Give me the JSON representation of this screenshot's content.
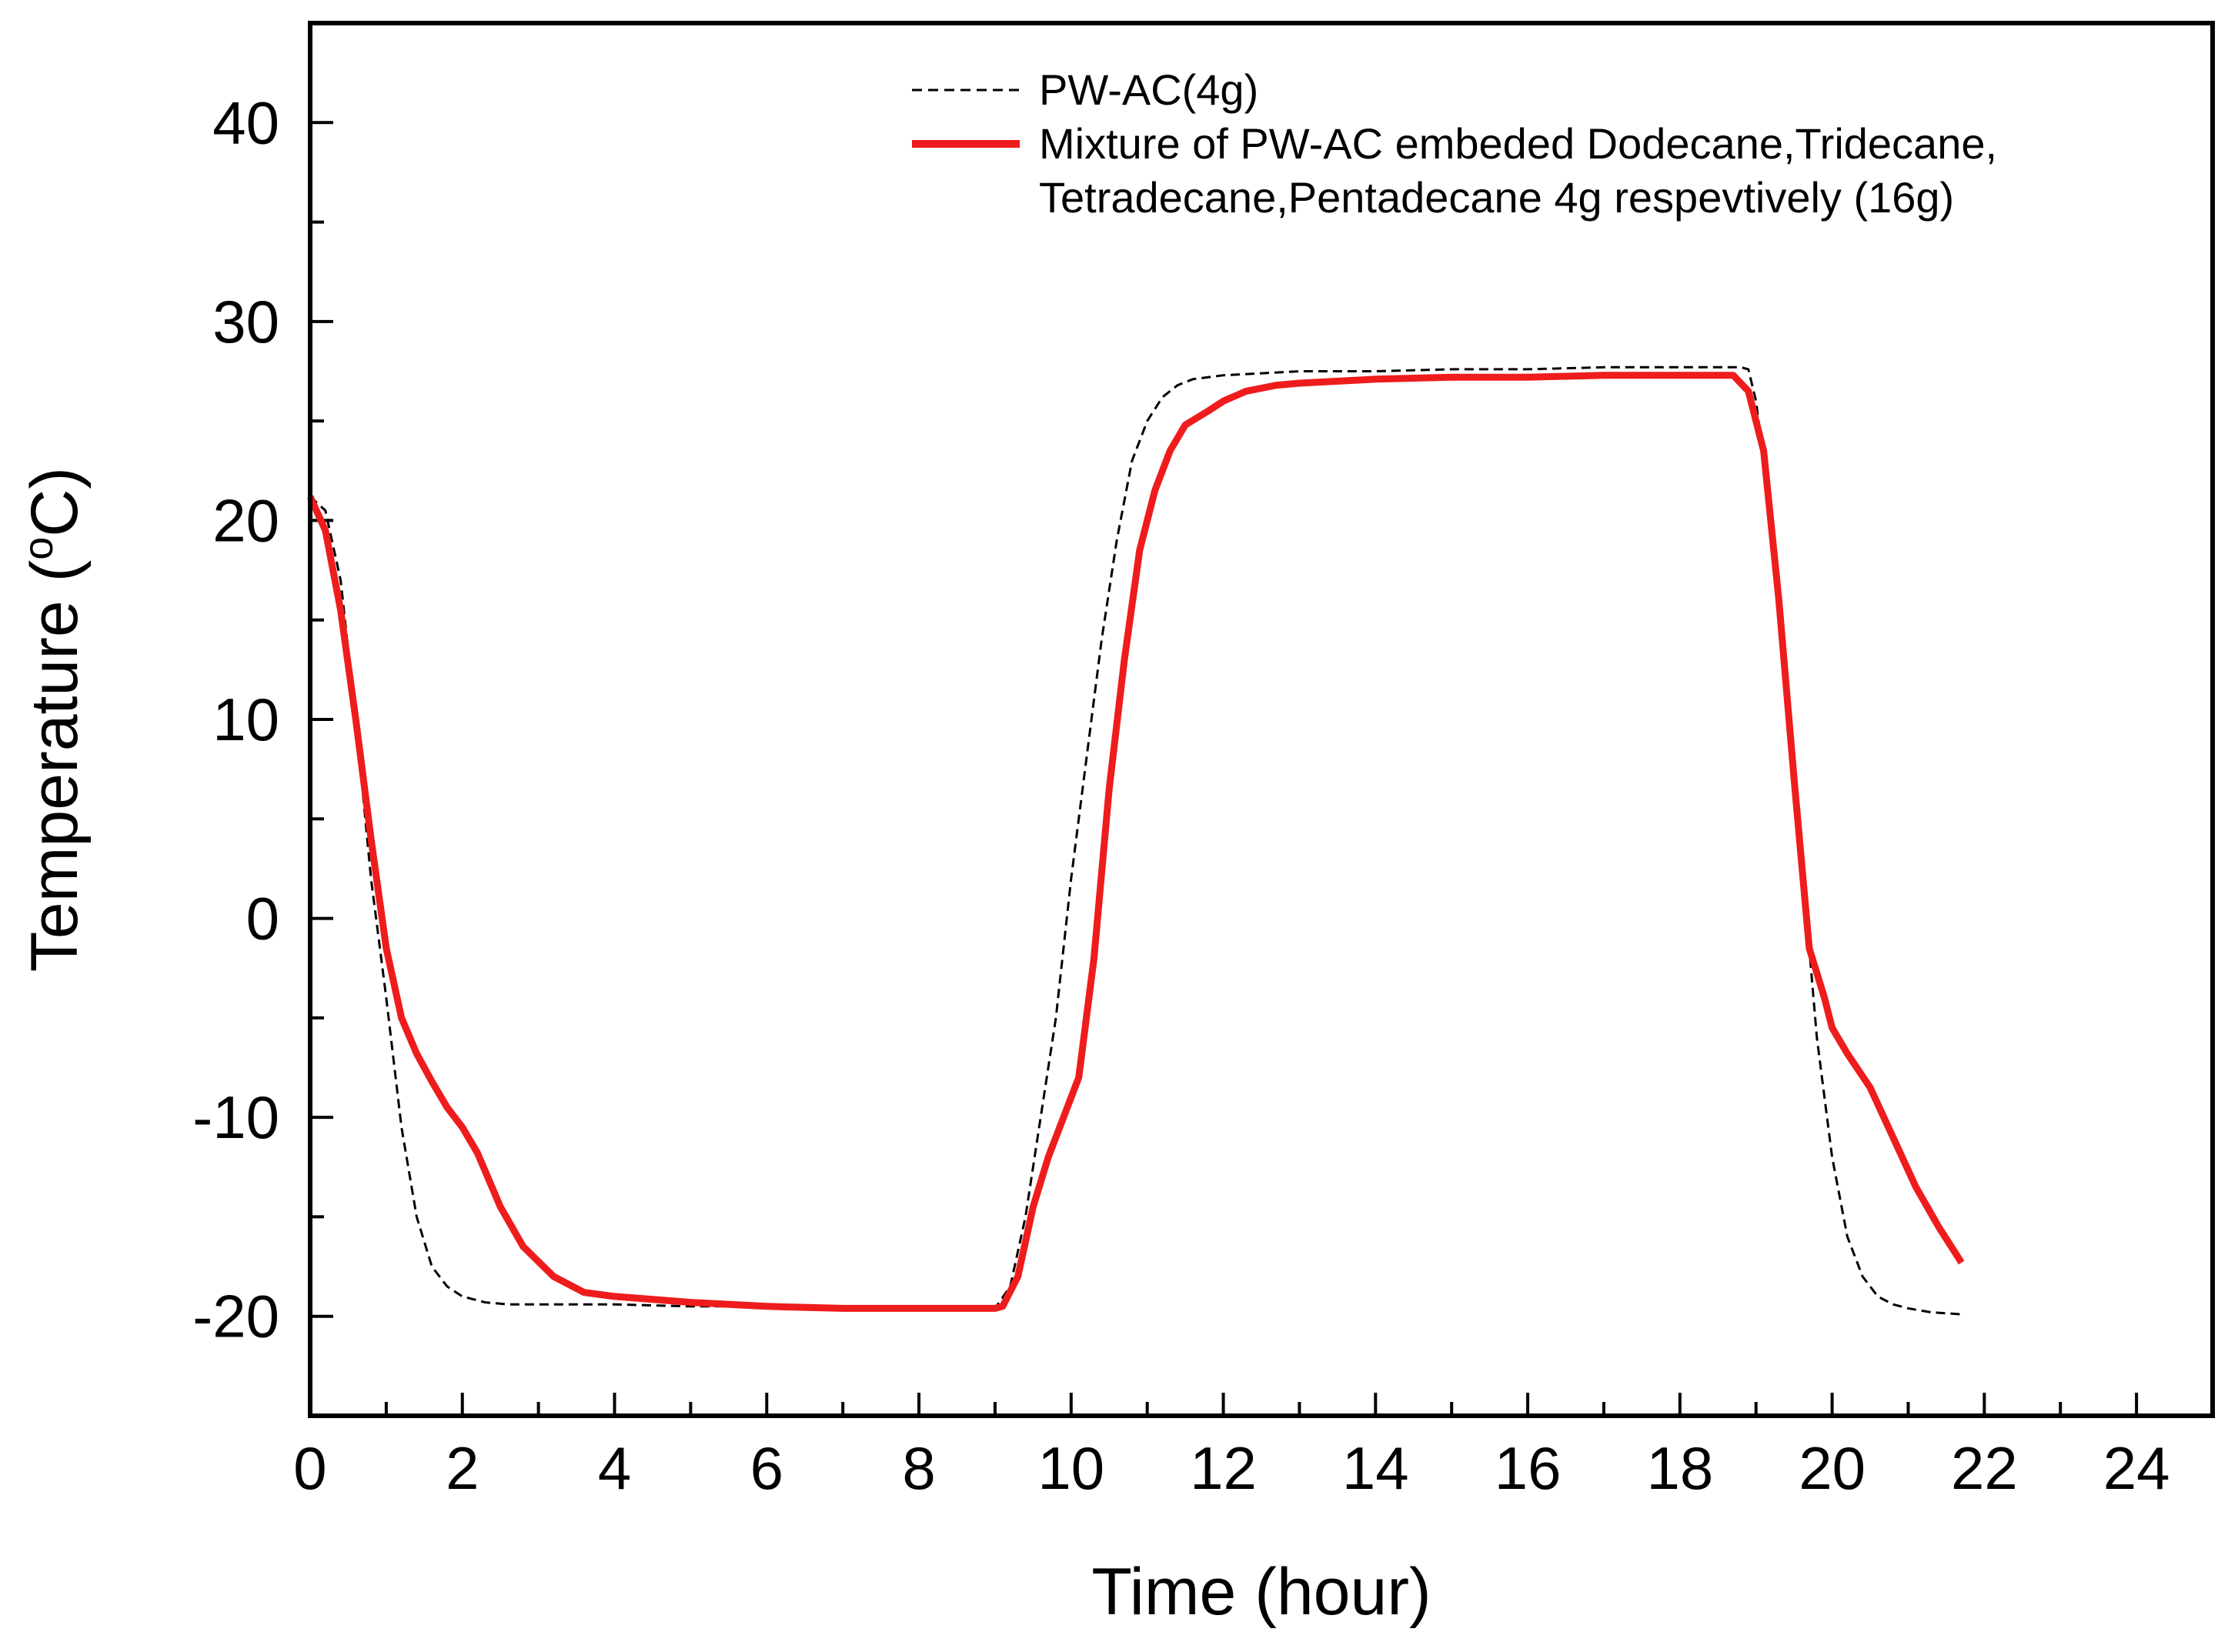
{
  "chart_data": {
    "type": "line",
    "title": "",
    "xlabel": "Time (hour)",
    "ylabel_main": "Temperature (",
    "ylabel_sup": "o",
    "ylabel_unit": "C)",
    "xlim": [
      0,
      25
    ],
    "ylim": [
      -25,
      45
    ],
    "xticks": [
      0,
      2,
      4,
      6,
      8,
      10,
      12,
      14,
      16,
      18,
      20,
      22,
      24
    ],
    "xtick_labels": [
      "0",
      "2",
      "4",
      "6",
      "8",
      "10",
      "12",
      "14",
      "16",
      "18",
      "20",
      "22",
      "24"
    ],
    "yticks": [
      -20,
      -10,
      0,
      10,
      20,
      30,
      40
    ],
    "ytick_labels": [
      "-20",
      "-10",
      "0",
      "10",
      "20",
      "30",
      "40"
    ],
    "grid": false,
    "legend_position": "top-right",
    "series": [
      {
        "name": "PW-AC(4g)",
        "style": "dashed",
        "color": "#000000",
        "x": [
          0,
          0.2,
          0.4,
          0.6,
          0.8,
          1.0,
          1.2,
          1.4,
          1.6,
          1.8,
          2.0,
          2.3,
          2.6,
          3.0,
          3.5,
          4.0,
          5.0,
          6.0,
          7.0,
          8.0,
          8.6,
          9.0,
          9.2,
          9.4,
          9.6,
          9.8,
          10.0,
          10.2,
          10.4,
          10.6,
          10.8,
          11.0,
          11.2,
          11.4,
          11.6,
          11.8,
          12.0,
          12.5,
          13.0,
          14.0,
          15.0,
          16.0,
          17.0,
          18.0,
          18.8,
          18.9,
          19.0,
          19.2,
          19.4,
          19.6,
          19.8,
          20.0,
          20.2,
          20.4,
          20.6,
          20.8,
          21.0,
          21.3,
          21.7
        ],
        "y": [
          21.2,
          20.5,
          17.0,
          10.0,
          2.0,
          -4.0,
          -10.5,
          -15.0,
          -17.5,
          -18.5,
          -19.0,
          -19.3,
          -19.4,
          -19.4,
          -19.4,
          -19.4,
          -19.5,
          -19.5,
          -19.6,
          -19.6,
          -19.7,
          -19.6,
          -18.5,
          -15.0,
          -10.0,
          -5.0,
          2.0,
          8.0,
          14.0,
          19.0,
          23.0,
          25.0,
          26.2,
          26.8,
          27.1,
          27.2,
          27.3,
          27.4,
          27.5,
          27.5,
          27.6,
          27.6,
          27.7,
          27.7,
          27.7,
          27.6,
          26.0,
          20.0,
          12.0,
          3.0,
          -6.0,
          -12.0,
          -16.0,
          -18.0,
          -19.0,
          -19.4,
          -19.6,
          -19.8,
          -19.9
        ]
      },
      {
        "name": "Mixture of PW-AC embeded Dodecane,Tridecane, Tetradecane,Pentadecane 4g respevtively  (16g)",
        "style": "solid",
        "color": "#ee1c1c",
        "x": [
          0,
          0.2,
          0.4,
          0.6,
          0.8,
          1.0,
          1.2,
          1.4,
          1.6,
          1.8,
          2.0,
          2.2,
          2.5,
          2.8,
          3.2,
          3.6,
          4.0,
          5.0,
          6.0,
          7.0,
          8.0,
          9.0,
          9.1,
          9.3,
          9.5,
          9.7,
          9.9,
          10.1,
          10.3,
          10.5,
          10.7,
          10.9,
          11.1,
          11.3,
          11.5,
          11.8,
          12.0,
          12.3,
          12.7,
          13.0,
          14.0,
          15.0,
          16.0,
          17.0,
          18.0,
          18.7,
          18.9,
          19.1,
          19.3,
          19.5,
          19.7,
          19.9,
          20.0,
          20.2,
          20.5,
          20.8,
          21.1,
          21.4,
          21.7
        ],
        "y": [
          21.2,
          19.5,
          15.5,
          10.0,
          4.0,
          -1.5,
          -5.0,
          -6.8,
          -8.2,
          -9.5,
          -10.5,
          -11.8,
          -14.5,
          -16.5,
          -18.0,
          -18.8,
          -19.0,
          -19.3,
          -19.5,
          -19.6,
          -19.6,
          -19.6,
          -19.5,
          -18.0,
          -14.5,
          -12.0,
          -10.0,
          -8.0,
          -2.0,
          6.5,
          13.0,
          18.5,
          21.5,
          23.5,
          24.8,
          25.5,
          26.0,
          26.5,
          26.8,
          26.9,
          27.1,
          27.2,
          27.2,
          27.3,
          27.3,
          27.3,
          26.5,
          23.5,
          16.0,
          7.0,
          -1.5,
          -4.0,
          -5.5,
          -6.8,
          -8.5,
          -11.0,
          -13.5,
          -15.5,
          -17.3
        ]
      }
    ]
  }
}
